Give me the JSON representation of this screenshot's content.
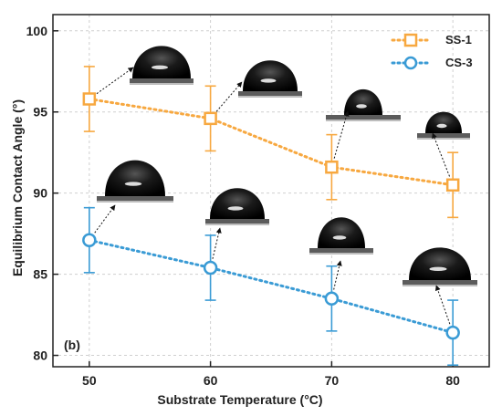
{
  "chart_data": {
    "type": "line",
    "title": "",
    "panel_label": "(b)",
    "xlabel": "Substrate Temperature (°C)",
    "ylabel": "Equilibrium Contact Angle (°)",
    "x": [
      50,
      60,
      70,
      80
    ],
    "xlim": [
      47,
      83
    ],
    "ylim": [
      79.3,
      101
    ],
    "xticks": [
      50,
      60,
      70,
      80
    ],
    "yticks": [
      80,
      85,
      90,
      95,
      100
    ],
    "grid": "dotted gray",
    "legend_position": "top-right",
    "series": [
      {
        "name": "SS-1",
        "values": [
          95.8,
          94.6,
          91.6,
          90.5
        ],
        "errors": [
          2.0,
          2.0,
          2.0,
          2.0
        ],
        "color": "#f7a840",
        "marker": "square",
        "line_style": "dotted"
      },
      {
        "name": "CS-3",
        "values": [
          87.1,
          85.4,
          83.5,
          81.4
        ],
        "errors": [
          2.0,
          2.0,
          2.0,
          2.0
        ],
        "color": "#3a9bd5",
        "marker": "circle",
        "line_style": "dotted"
      }
    ],
    "annotation_style": "droplet photographs linked to each point by dotted arrows"
  }
}
